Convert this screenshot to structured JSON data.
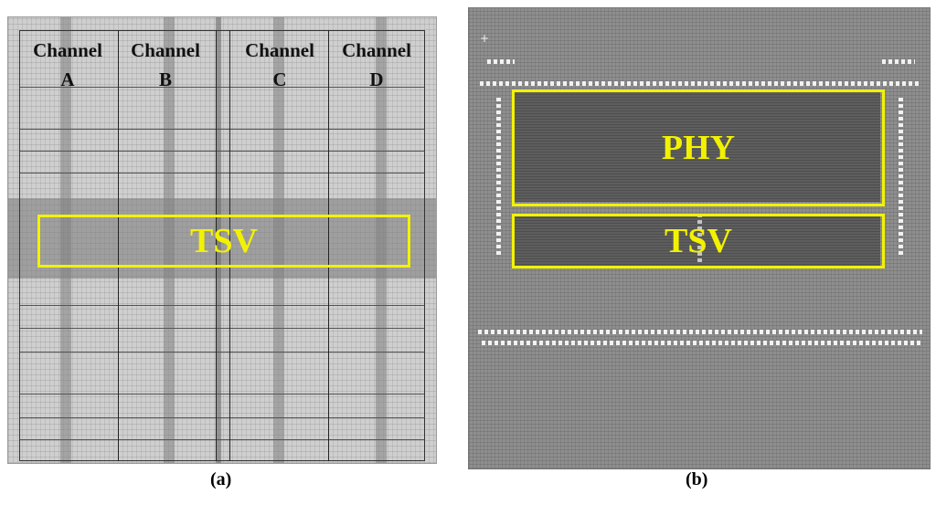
{
  "figure": {
    "panel_a": {
      "caption": "(a)",
      "channels": [
        {
          "word": "Channel",
          "letter": "A"
        },
        {
          "word": "Channel",
          "letter": "B"
        },
        {
          "word": "Channel",
          "letter": "C"
        },
        {
          "word": "Channel",
          "letter": "D"
        }
      ],
      "tsv_label": "TSV"
    },
    "panel_b": {
      "caption": "(b)",
      "phy_label": "PHY",
      "tsv_label": "TSV"
    },
    "colors": {
      "highlight": "#f2f200",
      "die_a": "#cfcfcf",
      "die_b": "#8e8e8e"
    }
  }
}
